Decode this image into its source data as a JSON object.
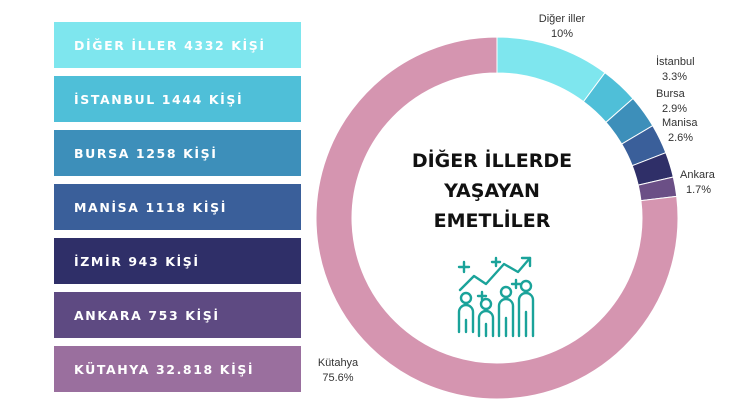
{
  "legend": [
    {
      "label": "DİĞER İLLER 4332 KİŞİ",
      "color": "#7ee6ee"
    },
    {
      "label": "İSTANBUL 1444 KİŞİ",
      "color": "#4fbfd8"
    },
    {
      "label": "BURSA 1258 KİŞİ",
      "color": "#3d8fba"
    },
    {
      "label": "MANİSA 1118 KİŞİ",
      "color": "#3a5f9a"
    },
    {
      "label": "İZMİR 943 KİŞİ",
      "color": "#2f2f68"
    },
    {
      "label": "ANKARA 753 KİŞİ",
      "color": "#5e4a82"
    },
    {
      "label": "KÜTAHYA 32.818 KİŞİ",
      "color": "#9a6f9e"
    }
  ],
  "center_title": [
    "DİĞER İLLERDE",
    "YAŞAYAN",
    "EMETLİLER"
  ],
  "icon": {
    "name": "people-growth-icon",
    "color": "#1aa39a"
  },
  "chart_data": {
    "type": "pie",
    "donut": true,
    "categories": [
      "Diğer iller",
      "İstanbul",
      "Bursa",
      "Manisa",
      "İzmir",
      "Ankara",
      "Kütahya"
    ],
    "values": [
      10,
      3.3,
      2.9,
      2.6,
      2.2,
      1.7,
      75.6
    ],
    "colors": [
      "#7ee6ee",
      "#4fbfd8",
      "#3d8fba",
      "#3a5f9a",
      "#2f2f68",
      "#6b4f86",
      "#d595b0"
    ],
    "labels": [
      {
        "name": "Diğer iller",
        "value": "10%"
      },
      {
        "name": "İstanbul",
        "value": "3.3%"
      },
      {
        "name": "Bursa",
        "value": "2.9%"
      },
      {
        "name": "Manisa",
        "value": "2.6%"
      },
      {
        "name": "",
        "value": ""
      },
      {
        "name": "Ankara",
        "value": "1.7%"
      },
      {
        "name": "Kütahya",
        "value": "75.6%"
      }
    ]
  }
}
